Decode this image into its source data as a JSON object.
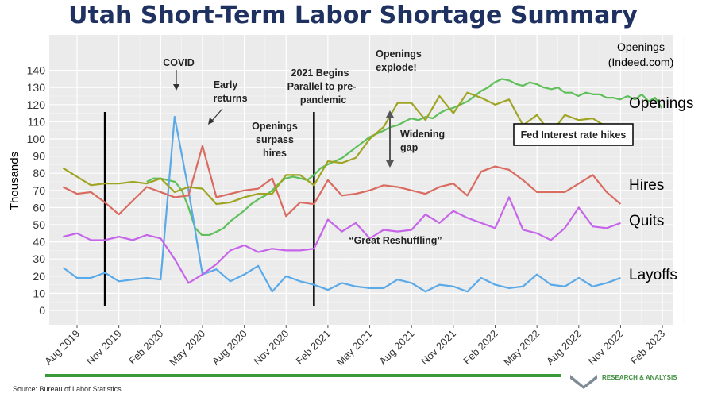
{
  "title": "Utah Short-Term Labor Shortage Summary",
  "source": "Source: Bureau of Labor Statistics",
  "org_label": "RESEARCH & ANALYSIS",
  "colors": {
    "title": "#1f3160",
    "openings": "#9fa523",
    "indeed": "#5fbf5a",
    "hires": "#d96b60",
    "quits": "#c665e9",
    "layoffs": "#5aa9e8",
    "panel": "#ebebeb",
    "green_bar": "#3a9a3a"
  },
  "annotations": {
    "covid": "COVID",
    "early_returns": [
      "Early",
      "returns"
    ],
    "begins_2021": [
      "2021 Begins",
      "Parallel to pre-",
      "pandemic"
    ],
    "surpass": [
      "Openings",
      "surpass",
      "hires"
    ],
    "explode": [
      "Openings",
      "explode!"
    ],
    "widening": [
      "Widening",
      "gap"
    ],
    "great_reshuffling": "“Great Reshuffling”",
    "fed_box": "Fed Interest rate hikes",
    "indeed_label": [
      "Openings",
      "(Indeed.com)"
    ]
  },
  "chart_data": {
    "type": "line",
    "ylabel": "Thousands",
    "ylim": [
      0,
      140
    ],
    "yticks": [
      0,
      10,
      20,
      30,
      40,
      50,
      60,
      70,
      80,
      90,
      100,
      110,
      120,
      130,
      140
    ],
    "xtick_labels": [
      "Aug 2019",
      "Nov 2019",
      "Feb 2020",
      "May 2020",
      "Aug 2020",
      "Nov 2020",
      "Feb 2021",
      "May 2021",
      "Aug 2021",
      "Nov 2021",
      "Feb 2022",
      "May 2022",
      "Aug 2022",
      "Nov 2022",
      "Feb 2023"
    ],
    "x": [
      "2019-07",
      "2019-08",
      "2019-09",
      "2019-10",
      "2019-11",
      "2019-12",
      "2020-01",
      "2020-02",
      "2020-03",
      "2020-04",
      "2020-05",
      "2020-06",
      "2020-07",
      "2020-08",
      "2020-09",
      "2020-10",
      "2020-11",
      "2020-12",
      "2021-01",
      "2021-02",
      "2021-03",
      "2021-04",
      "2021-05",
      "2021-06",
      "2021-07",
      "2021-08",
      "2021-09",
      "2021-10",
      "2021-11",
      "2021-12",
      "2022-01",
      "2022-02",
      "2022-03",
      "2022-04",
      "2022-05",
      "2022-06",
      "2022-07",
      "2022-08",
      "2022-09",
      "2022-10",
      "2022-11"
    ],
    "series": [
      {
        "name": "Openings",
        "values": [
          83,
          78,
          73,
          74,
          74,
          75,
          74,
          77,
          69,
          72,
          71,
          62,
          63,
          66,
          68,
          68,
          79,
          79,
          73,
          87,
          86,
          89,
          100,
          107,
          121,
          121,
          111,
          125,
          115,
          127,
          124,
          120,
          123,
          108,
          114,
          103,
          114,
          111,
          112,
          107,
          107
        ]
      },
      {
        "name": "Hires",
        "values": [
          72,
          68,
          69,
          63,
          56,
          64,
          72,
          69,
          66,
          67,
          96,
          66,
          68,
          70,
          71,
          77,
          55,
          63,
          62,
          76,
          67,
          68,
          70,
          73,
          72,
          70,
          68,
          72,
          74,
          67,
          81,
          84,
          82,
          76,
          69,
          69,
          69,
          74,
          79,
          69,
          62
        ]
      },
      {
        "name": "Quits",
        "values": [
          43,
          45,
          41,
          41,
          43,
          41,
          44,
          42,
          30,
          16,
          21,
          27,
          35,
          38,
          34,
          36,
          35,
          35,
          36,
          53,
          46,
          51,
          42,
          47,
          46,
          47,
          56,
          51,
          58,
          54,
          51,
          48,
          66,
          47,
          45,
          41,
          48,
          60,
          49,
          48,
          51
        ]
      },
      {
        "name": "Layoffs",
        "values": [
          25,
          19,
          19,
          22,
          17,
          18,
          19,
          18,
          113,
          70,
          21,
          24,
          17,
          21,
          26,
          11,
          20,
          17,
          15,
          12,
          16,
          14,
          13,
          13,
          18,
          16,
          11,
          15,
          14,
          11,
          19,
          15,
          13,
          14,
          21,
          15,
          14,
          19,
          14,
          16,
          19
        ]
      }
    ],
    "indeed_series": {
      "name": "Openings (Indeed.com)",
      "x": [
        2020.0,
        2020.04,
        2020.08,
        2020.125,
        2020.17,
        2020.21,
        2020.25,
        2020.29,
        2020.33,
        2020.375,
        2020.42,
        2020.46,
        2020.5,
        2020.54,
        2020.58,
        2020.625,
        2020.67,
        2020.71,
        2020.75,
        2020.79,
        2020.83,
        2020.875,
        2020.92,
        2020.96,
        2021.0,
        2021.04,
        2021.08,
        2021.125,
        2021.17,
        2021.21,
        2021.25,
        2021.29,
        2021.33,
        2021.375,
        2021.42,
        2021.46,
        2021.5,
        2021.54,
        2021.58,
        2021.625,
        2021.67,
        2021.71,
        2021.75,
        2021.79,
        2021.83,
        2021.875,
        2021.92,
        2021.96,
        2022.0,
        2022.04,
        2022.08,
        2022.125,
        2022.17,
        2022.21,
        2022.25,
        2022.29,
        2022.33,
        2022.375,
        2022.42,
        2022.46,
        2022.5,
        2022.54,
        2022.58,
        2022.625,
        2022.67,
        2022.71,
        2022.75,
        2022.79,
        2022.83,
        2022.875,
        2022.92,
        2022.96,
        2023.0,
        2023.04,
        2023.08
      ],
      "values": [
        75,
        77,
        77,
        76,
        75,
        70,
        60,
        48,
        44,
        44,
        46,
        48,
        52,
        55,
        58,
        62,
        65,
        67,
        70,
        74,
        77,
        78,
        77,
        76,
        79,
        83,
        85,
        87,
        89,
        92,
        95,
        98,
        101,
        103,
        105,
        107,
        108,
        110,
        112,
        111,
        113,
        112,
        115,
        117,
        118,
        120,
        122,
        125,
        128,
        130,
        133,
        135,
        134,
        132,
        131,
        133,
        132,
        130,
        129,
        130,
        127,
        127,
        125,
        127,
        126,
        126,
        124,
        124,
        123,
        125,
        123,
        126,
        122,
        124,
        118
      ]
    },
    "vlines": [
      2019.75,
      2021.0
    ]
  }
}
